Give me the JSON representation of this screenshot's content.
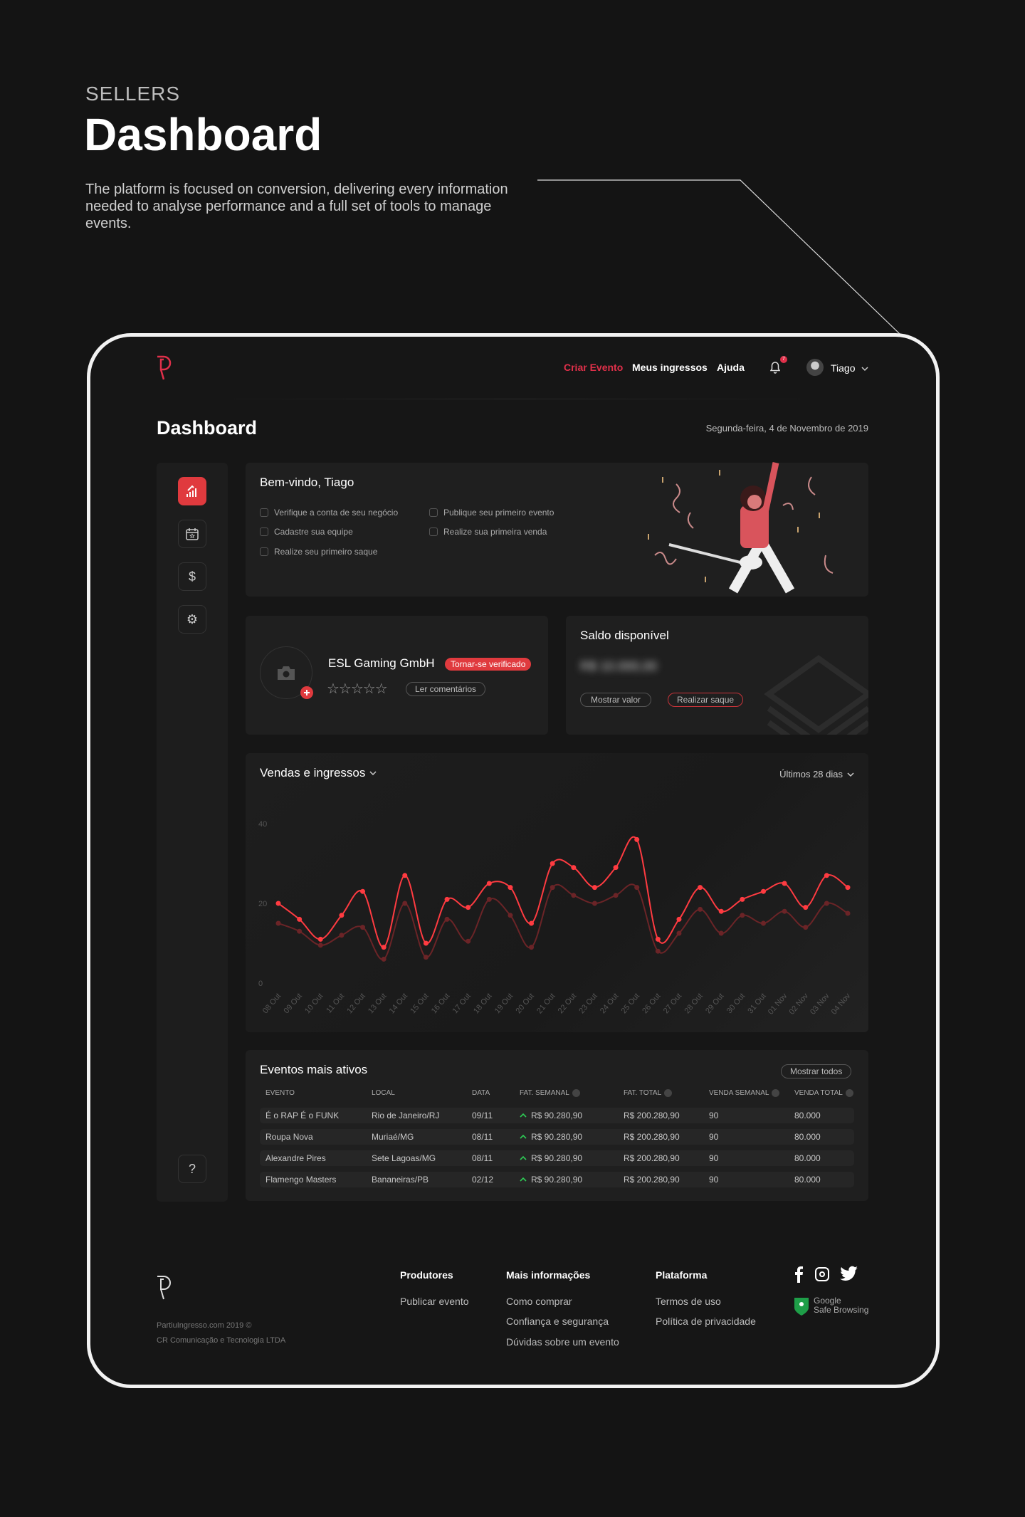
{
  "hero": {
    "eyebrow": "SELLERS",
    "title": "Dashboard",
    "description": "The platform is focused on conversion, delivering every information needed to analyse performance and a full set of tools to manage events."
  },
  "nav": {
    "create_event": "Criar Evento",
    "my_tickets": "Meus ingressos",
    "help": "Ajuda",
    "notification_count": "7",
    "user": "Tiago",
    "accent": "#e0304a"
  },
  "page": {
    "title": "Dashboard",
    "date": "Segunda-feira, 4 de Novembro de 2019"
  },
  "sidebar": {
    "items": [
      {
        "icon": "chart-icon",
        "active": true
      },
      {
        "icon": "calendar-star-icon"
      },
      {
        "icon": "dollar-icon"
      },
      {
        "icon": "gear-icon"
      }
    ],
    "help_icon": "?"
  },
  "welcome": {
    "title": "Bem-vindo, Tiago",
    "tasks": [
      "Verifique a conta de seu negócio",
      "Cadastre sua equipe",
      "Realize seu primeiro saque",
      "Publique seu primeiro evento",
      "Realize sua primeira venda"
    ]
  },
  "profile": {
    "name": "ESL Gaming GmbH",
    "verify_badge": "Tornar-se verificado",
    "rating": 0,
    "max_rating": 5,
    "reviews_button": "Ler comentários"
  },
  "balance": {
    "title": "Saldo disponível",
    "value": "R$ 10.000,00",
    "show_button": "Mostrar valor",
    "withdraw_button": "Realizar saque"
  },
  "chart_data": {
    "type": "line",
    "title": "Vendas e ingressos",
    "period": "Últimos 28 dias",
    "ylim": [
      0,
      40
    ],
    "yticks": [
      0,
      20,
      40
    ],
    "categories": [
      "08 Out",
      "09 Out",
      "10 Out",
      "11 Out",
      "12 Out",
      "13 Out",
      "14 Out",
      "15 Out",
      "16 Out",
      "17 Out",
      "18 Out",
      "19 Out",
      "20 Out",
      "21 Out",
      "22 Out",
      "23 Out",
      "24 Out",
      "25 Out",
      "26 Out",
      "27 Out",
      "28 Out",
      "29 Out",
      "30 Out",
      "31 Out",
      "01 Nov",
      "02 Nov",
      "03 Nov",
      "04 Nov"
    ],
    "series": [
      {
        "color": "#ff3b41",
        "values": [
          20,
          16,
          11,
          17,
          23,
          9,
          27,
          10,
          21,
          19,
          25,
          24,
          15,
          30,
          29,
          24,
          29,
          36,
          11,
          16,
          24,
          18,
          21,
          23,
          25,
          19,
          27,
          24
        ]
      },
      {
        "color": "#6b2427",
        "values": [
          15,
          13,
          9.5,
          12,
          14,
          6,
          20,
          6.5,
          16,
          10.5,
          21,
          17,
          9,
          24,
          22,
          20,
          22,
          24,
          8,
          12.5,
          18.5,
          12.5,
          17,
          15,
          18,
          14,
          20,
          17.5
        ]
      }
    ]
  },
  "events": {
    "title": "Eventos mais ativos",
    "show_all": "Mostrar todos",
    "columns": [
      "EVENTO",
      "LOCAL",
      "DATA",
      "FAT. SEMANAL",
      "FAT. TOTAL",
      "VENDA SEMANAL",
      "VENDA TOTAL"
    ],
    "rows": [
      [
        "É o RAP É o FUNK",
        "Rio de Janeiro/RJ",
        "09/11",
        "R$ 90.280,90",
        "R$ 200.280,90",
        "90",
        "80.000"
      ],
      [
        "Roupa Nova",
        "Muriaé/MG",
        "08/11",
        "R$ 90.280,90",
        "R$ 200.280,90",
        "90",
        "80.000"
      ],
      [
        "Alexandre Pires",
        "Sete Lagoas/MG",
        "08/11",
        "R$ 90.280,90",
        "R$ 200.280,90",
        "90",
        "80.000"
      ],
      [
        "Flamengo Masters",
        "Bananeiras/PB",
        "02/12",
        "R$ 90.280,90",
        "R$ 200.280,90",
        "90",
        "80.000"
      ]
    ]
  },
  "footer": {
    "copyright": "PartiuIngresso.com 2019 ©",
    "company": "CR Comunicação e Tecnologia LTDA",
    "columns": [
      {
        "title": "Produtores",
        "links": [
          "Publicar evento"
        ]
      },
      {
        "title": "Mais informações",
        "links": [
          "Como comprar",
          "Confiança e segurança",
          "Dúvidas sobre um evento"
        ]
      },
      {
        "title": "Plataforma",
        "links": [
          "Termos de uso",
          "Política de privacidade"
        ]
      }
    ],
    "safe_browsing": [
      "Google",
      "Safe Browsing"
    ]
  }
}
